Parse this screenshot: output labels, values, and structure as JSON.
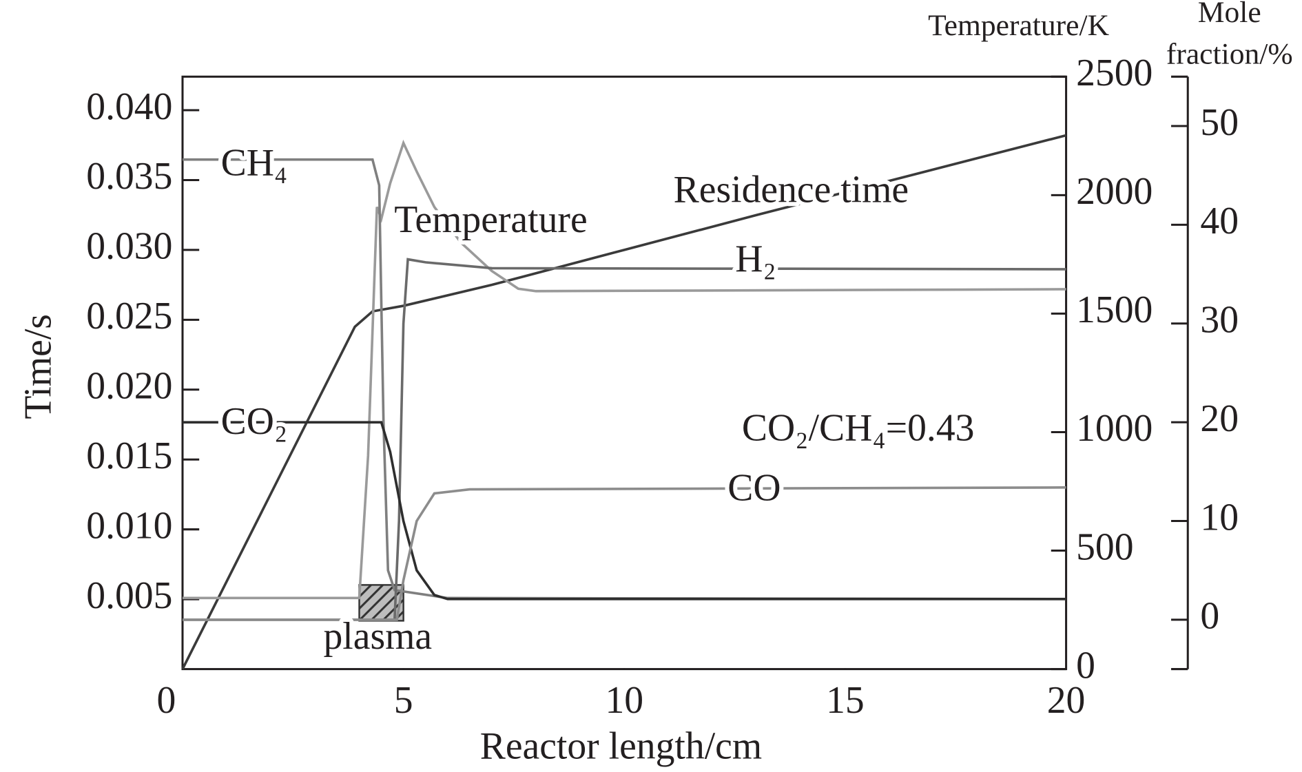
{
  "chart_data": {
    "type": "line",
    "x_label": "Reactor length/cm",
    "y_label": "Time/s",
    "y2_label": "Temperature/K",
    "y3_label": [
      "Mole",
      "fraction/%"
    ],
    "xlim": [
      0,
      20
    ],
    "xticks": [
      0,
      5,
      10,
      15,
      20
    ],
    "ylim": [
      0,
      0.0424
    ],
    "yticks": [
      {
        "value": 0.005,
        "label": "0.005"
      },
      {
        "value": 0.01,
        "label": "0.010"
      },
      {
        "value": 0.015,
        "label": "0.015"
      },
      {
        "value": 0.02,
        "label": "0.020"
      },
      {
        "value": 0.025,
        "label": "0.025"
      },
      {
        "value": 0.03,
        "label": "0.030"
      },
      {
        "value": 0.035,
        "label": "0.035"
      },
      {
        "value": 0.04,
        "label": "0.040"
      }
    ],
    "y2lim": [
      0,
      2500
    ],
    "y2ticks": [
      0,
      500,
      1000,
      1500,
      2000,
      2500
    ],
    "y3lim": [
      -5,
      55
    ],
    "y3ticks": [
      0,
      10,
      20,
      30,
      40,
      50
    ],
    "series": [
      {
        "name": "Residence time",
        "color": "#3a3a3a",
        "x": [
          0,
          3.9,
          4.3,
          5,
          7,
          10,
          13,
          20
        ],
        "values": [
          0,
          0.0245,
          0.0256,
          0.026,
          0.0275,
          0.03,
          0.0325,
          0.0382
        ]
      },
      {
        "name": "Temperature",
        "color": "#9a9a9a",
        "axis": "y2",
        "x": [
          0,
          4.0,
          4.2,
          4.4,
          4.5,
          4.7,
          5.0,
          5.3,
          5.7,
          6.3,
          7.0,
          7.6,
          8.0,
          20
        ],
        "values": [
          300,
          300,
          900,
          1950,
          1900,
          2050,
          2220,
          2100,
          1950,
          1800,
          1680,
          1605,
          1595,
          1603
        ]
      },
      {
        "name": "CH₄",
        "color": "#7f7f7f",
        "axis": "y3",
        "x": [
          0,
          4.3,
          4.45,
          4.55,
          4.65,
          4.8,
          6,
          20
        ],
        "values": [
          46.6,
          46.6,
          44,
          20,
          5,
          3,
          2.2,
          2.1
        ]
      },
      {
        "name": "H₂",
        "color": "#6a6a6a",
        "axis": "y3",
        "x": [
          0,
          4.8,
          4.9,
          5.0,
          5.1,
          5.5,
          7,
          20
        ],
        "values": [
          0,
          0,
          10,
          30,
          36.5,
          36.2,
          35.6,
          35.5
        ]
      },
      {
        "name": "CO₂",
        "color": "#2e2e2e",
        "axis": "y3",
        "x": [
          0,
          4.5,
          4.7,
          5.0,
          5.3,
          5.7,
          6,
          20
        ],
        "values": [
          20,
          20,
          17,
          10,
          5,
          2.5,
          2.1,
          2.1
        ]
      },
      {
        "name": "CO",
        "color": "#8c8c8c",
        "axis": "y3",
        "x": [
          0,
          4.85,
          5.0,
          5.3,
          5.7,
          6.5,
          20
        ],
        "values": [
          0,
          0,
          4,
          10,
          12.8,
          13.2,
          13.4
        ]
      }
    ],
    "annotations": [
      "CO₂/CH₄=0.43",
      "plasma"
    ],
    "plasma_region": [
      4,
      5
    ]
  }
}
